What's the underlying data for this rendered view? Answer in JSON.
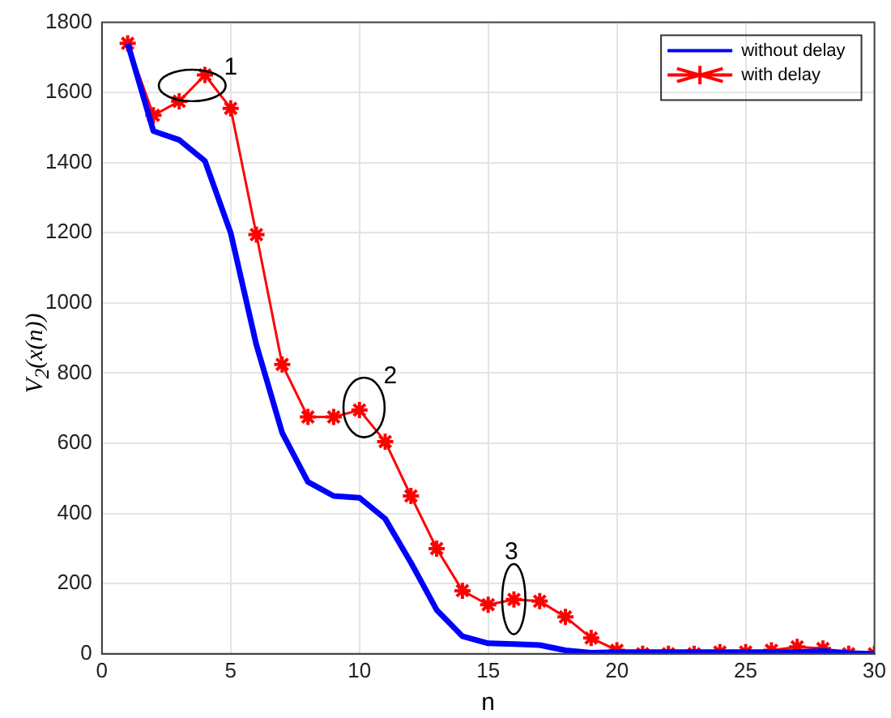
{
  "chart_data": {
    "type": "line",
    "xlabel": "n",
    "ylabel": "V$_{2}$(x(n))",
    "x": [
      1,
      2,
      3,
      4,
      5,
      6,
      7,
      8,
      9,
      10,
      11,
      12,
      13,
      14,
      15,
      16,
      17,
      18,
      19,
      20,
      21,
      22,
      23,
      24,
      25,
      26,
      27,
      28,
      29,
      30
    ],
    "series": [
      {
        "name": "without delay",
        "color": "#0000ff",
        "marker": "none",
        "values": [
          1740,
          1490,
          1465,
          1405,
          1200,
          880,
          630,
          490,
          450,
          445,
          385,
          260,
          125,
          50,
          30,
          28,
          25,
          10,
          3,
          5,
          5,
          5,
          5,
          5,
          5,
          5,
          5,
          8,
          2,
          0
        ]
      },
      {
        "name": "with delay",
        "color": "#ff0000",
        "marker": "cross",
        "values": [
          1740,
          1535,
          1575,
          1650,
          1555,
          1195,
          825,
          675,
          675,
          695,
          605,
          450,
          300,
          180,
          140,
          155,
          150,
          105,
          45,
          10,
          0,
          0,
          0,
          5,
          5,
          10,
          20,
          15,
          0,
          0
        ]
      }
    ],
    "annotations": [
      {
        "text": "1",
        "x": 4,
        "y": 1650
      },
      {
        "text": "2",
        "x": 10,
        "y": 695
      },
      {
        "text": "3",
        "x": 16,
        "y": 155
      }
    ],
    "xlim": [
      0,
      30
    ],
    "xticks": [
      0,
      5,
      10,
      15,
      20,
      25,
      30
    ],
    "ylim": [
      0,
      1800
    ],
    "yticks": [
      0,
      200,
      400,
      600,
      800,
      1000,
      1200,
      1400,
      1600,
      1800
    ],
    "grid": true,
    "legend": "top right"
  }
}
